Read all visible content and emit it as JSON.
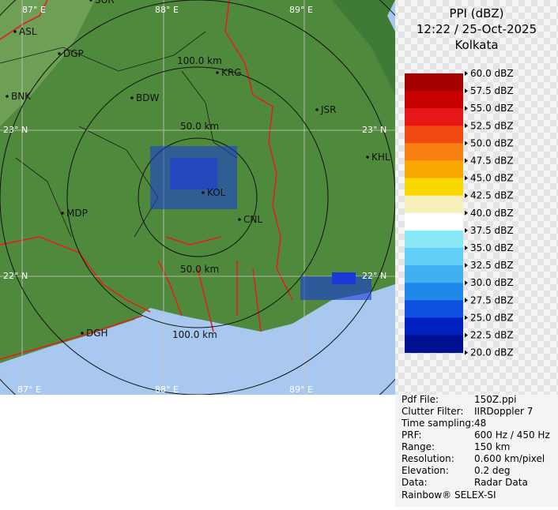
{
  "header": {
    "title": "PPI (dBZ)",
    "time": "12:22 / 25-Oct-2025",
    "station": "Kolkata"
  },
  "legend": {
    "labels": [
      "60.0 dBZ",
      "57.5 dBZ",
      "55.0 dBZ",
      "52.5 dBZ",
      "50.0 dBZ",
      "47.5 dBZ",
      "45.0 dBZ",
      "42.5 dBZ",
      "40.0 dBZ",
      "37.5 dBZ",
      "35.0 dBZ",
      "32.5 dBZ",
      "30.0 dBZ",
      "27.5 dBZ",
      "25.0 dBZ",
      "22.5 dBZ",
      "20.0 dBZ"
    ],
    "colors": [
      "#a80000",
      "#c80000",
      "#e81818",
      "#f04a10",
      "#f88010",
      "#f8a800",
      "#f8d800",
      "#f8f0b8",
      "#ffffff",
      "#88e8f8",
      "#60d0f8",
      "#40b0f0",
      "#2088e8",
      "#1050e0",
      "#0020c0",
      "#001090"
    ]
  },
  "map": {
    "longitudes": [
      "87° E",
      "88° E",
      "89° E"
    ],
    "latitudes": [
      "23° N",
      "22° N"
    ],
    "ranges": [
      "50.0 km",
      "100.0 km"
    ],
    "cities": [
      "SUR",
      "ASL",
      "DGP",
      "BNK",
      "BDW",
      "KRG",
      "JSR",
      "KHL",
      "MDP",
      "DGH",
      "CNL",
      "KOL"
    ]
  },
  "info": {
    "rows": [
      [
        "Pdf File:",
        "150Z.ppi"
      ],
      [
        "Clutter Filter:",
        "IIRDoppler 7"
      ],
      [
        "Time sampling:",
        "48"
      ],
      [
        "PRF:",
        "600 Hz / 450 Hz"
      ],
      [
        "Range:",
        "150 km"
      ],
      [
        "Resolution:",
        "0.600 km/pixel"
      ],
      [
        "Elevation:",
        "0.2 deg"
      ],
      [
        "Data:",
        "Radar Data"
      ]
    ],
    "footer": "Rainbow® SELEX-SI"
  }
}
